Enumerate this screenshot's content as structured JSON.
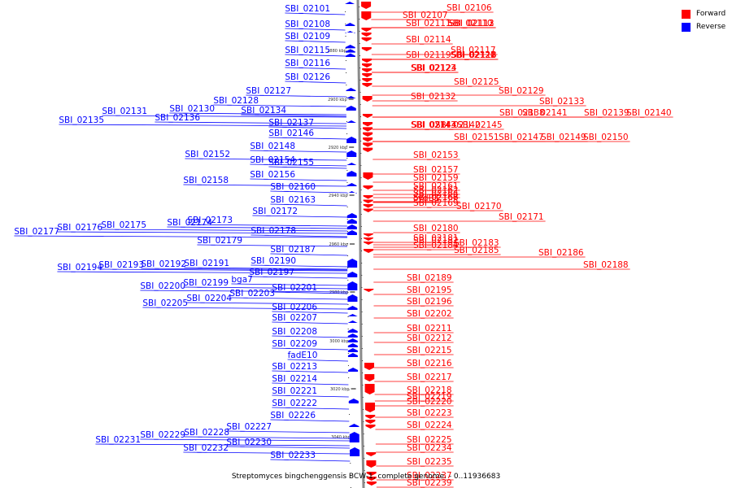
{
  "caption": "Streptomyces bingchenggensis BCW-1, complete genome. - 0..11936683",
  "legend": {
    "forward": {
      "label": "Forward",
      "color": "#ff0000"
    },
    "reverse": {
      "label": "Reverse",
      "color": "#0000ff"
    }
  },
  "colors": {
    "backbone": "#8a8a8a",
    "forward": "#ff0000",
    "reverse": "#0000ff"
  },
  "scale_unit": "kbp",
  "scale_ticks": [
    {
      "kbp": 2880,
      "label": "2880 kbp"
    },
    {
      "kbp": 2900,
      "label": "2900 kbp"
    },
    {
      "kbp": 2920,
      "label": "2920 kbp"
    },
    {
      "kbp": 2940,
      "label": "2940 kbp"
    },
    {
      "kbp": 2960,
      "label": "2960 kbp"
    },
    {
      "kbp": 2980,
      "label": "2980 kbp"
    },
    {
      "kbp": 3000,
      "label": "3000 kbp"
    },
    {
      "kbp": 3020,
      "label": "3020 kbp"
    },
    {
      "kbp": 3040,
      "label": "3040 kbp"
    }
  ],
  "reverse_genes": [
    {
      "label": "SBI_02101"
    },
    {
      "label": "SBI_02108"
    },
    {
      "label": "SBI_02109"
    },
    {
      "label": "SBI_02115"
    },
    {
      "label": "SBI_02116"
    },
    {
      "label": "SBI_02126"
    },
    {
      "label": "SBI_02127"
    },
    {
      "label": "SBI_02128"
    },
    {
      "label": "SBI_02130"
    },
    {
      "label": "SBI_02131"
    },
    {
      "label": "SBI_02134"
    },
    {
      "label": "SBI_02135"
    },
    {
      "label": "SBI_02136"
    },
    {
      "label": "SBI_02137"
    },
    {
      "label": "SBI_02146"
    },
    {
      "label": "SBI_02148"
    },
    {
      "label": "SBI_02152"
    },
    {
      "label": "SBI_02154"
    },
    {
      "label": "SBI_02155"
    },
    {
      "label": "SBI_02156"
    },
    {
      "label": "SBI_02158"
    },
    {
      "label": "SBI_02160"
    },
    {
      "label": "SBI_02163"
    },
    {
      "label": "SBI_02172"
    },
    {
      "label": "SBI_02173"
    },
    {
      "label": "SBI_02174"
    },
    {
      "label": "SBI_02175"
    },
    {
      "label": "SBI_02176"
    },
    {
      "label": "SBI_02177"
    },
    {
      "label": "SBI_02178"
    },
    {
      "label": "SBI_02179"
    },
    {
      "label": "SBI_02187"
    },
    {
      "label": "SBI_02190"
    },
    {
      "label": "SBI_02191"
    },
    {
      "label": "SBI_02192"
    },
    {
      "label": "SBI_02193"
    },
    {
      "label": "SBI_02194"
    },
    {
      "label": "SBI_02197"
    },
    {
      "label": "bga7"
    },
    {
      "label": "SBI_02199"
    },
    {
      "label": "SBI_02200"
    },
    {
      "label": "SBI_02201"
    },
    {
      "label": "SBI_02203"
    },
    {
      "label": "SBI_02204"
    },
    {
      "label": "SBI_02205"
    },
    {
      "label": "SBI_02206"
    },
    {
      "label": "SBI_02207"
    },
    {
      "label": "SBI_02208"
    },
    {
      "label": "SBI_02209"
    },
    {
      "label": "fadE10"
    },
    {
      "label": "SBI_02213"
    },
    {
      "label": "SBI_02214"
    },
    {
      "label": "SBI_02221"
    },
    {
      "label": "SBI_02222"
    },
    {
      "label": "SBI_02226"
    },
    {
      "label": "SBI_02227"
    },
    {
      "label": "SBI_02228"
    },
    {
      "label": "SBI_02229"
    },
    {
      "label": "SBI_02230"
    },
    {
      "label": "SBI_02231"
    },
    {
      "label": "SBI_02232"
    },
    {
      "label": "SBI_02233"
    }
  ],
  "forward_genes": [
    {
      "label": "SBI_02106"
    },
    {
      "label": "SBI_02107"
    },
    {
      "label": "SBI_02110"
    },
    {
      "label": "SBI_02111"
    },
    {
      "label": "SBI_02112"
    },
    {
      "label": "SBI_02113"
    },
    {
      "label": "SBI_02114"
    },
    {
      "label": "SBI_02117"
    },
    {
      "label": "SBI_02118"
    },
    {
      "label": "SBI_02119"
    },
    {
      "label": "SBI_02120"
    },
    {
      "label": "SBI_02121"
    },
    {
      "label": "SBI_02122"
    },
    {
      "label": "SBI_02123"
    },
    {
      "label": "SBI_02124"
    },
    {
      "label": "SBI_02125"
    },
    {
      "label": "SBI_02129"
    },
    {
      "label": "SBI_02132"
    },
    {
      "label": "SBI_02133"
    },
    {
      "label": "SBI_02138"
    },
    {
      "label": "SBI_02139"
    },
    {
      "label": "SBI_02140"
    },
    {
      "label": "SBI_02141"
    },
    {
      "label": "SBI_02142"
    },
    {
      "label": "SBI_02143"
    },
    {
      "label": "SBI_02144"
    },
    {
      "label": "SBI_02145"
    },
    {
      "label": "SBI_02147"
    },
    {
      "label": "SBI_02149"
    },
    {
      "label": "SBI_02150"
    },
    {
      "label": "SBI_02151"
    },
    {
      "label": "SBI_02153"
    },
    {
      "label": "SBI_02157"
    },
    {
      "label": "SBI_02159"
    },
    {
      "label": "SBI_02161"
    },
    {
      "label": "SBI_02162"
    },
    {
      "label": "SBI_02164"
    },
    {
      "label": "cydB1"
    },
    {
      "label": "SBI_02166"
    },
    {
      "label": "SBI_02167"
    },
    {
      "label": "SBI_02168"
    },
    {
      "label": "SBI_02169"
    },
    {
      "label": "SBI_02170"
    },
    {
      "label": "SBI_02171"
    },
    {
      "label": "SBI_02180"
    },
    {
      "label": "SBI_02181"
    },
    {
      "label": "SBI_02182"
    },
    {
      "label": "SBI_02183"
    },
    {
      "label": "SBI_02184"
    },
    {
      "label": "SBI_02185"
    },
    {
      "label": "SBI_02186"
    },
    {
      "label": "SBI_02188"
    },
    {
      "label": "SBI_02189"
    },
    {
      "label": "SBI_02195"
    },
    {
      "label": "SBI_02196"
    },
    {
      "label": "SBI_02202"
    },
    {
      "label": "SBI_02211"
    },
    {
      "label": "SBI_02212"
    },
    {
      "label": "SBI_02215"
    },
    {
      "label": "SBI_02216"
    },
    {
      "label": "SBI_02217"
    },
    {
      "label": "SBI_02218"
    },
    {
      "label": "SBI_02219"
    },
    {
      "label": "SBI_02220"
    },
    {
      "label": "SBI_02223"
    },
    {
      "label": "SBI_02224"
    },
    {
      "label": "SBI_02225"
    },
    {
      "label": "SBI_02234"
    },
    {
      "label": "SBI_02235"
    },
    {
      "label": "SBI_02237"
    },
    {
      "label": "SBI_02239"
    }
  ]
}
